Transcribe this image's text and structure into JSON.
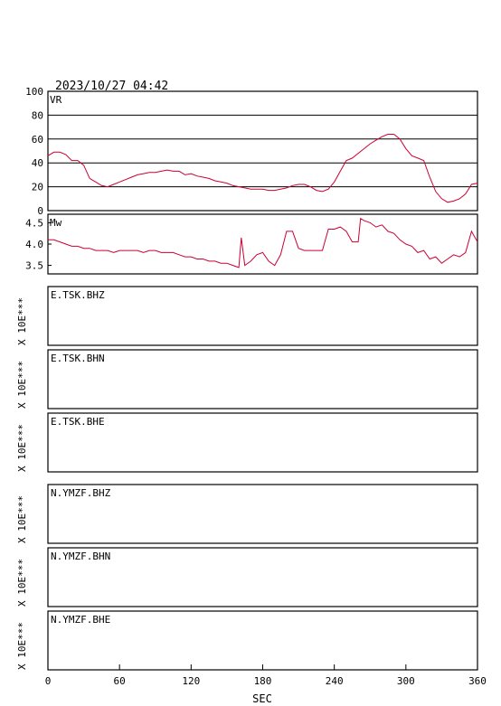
{
  "header": {
    "timestamp": "2023/10/27 04:42"
  },
  "colors": {
    "trace": "#cc0033",
    "frame": "#000000",
    "background": "#ffffff"
  },
  "chart_data": [
    {
      "type": "line",
      "panel_label": "VR",
      "xlim": [
        0,
        360
      ],
      "ylim": [
        0,
        100
      ],
      "yticks": [
        "0",
        "20",
        "40",
        "60",
        "80",
        "100"
      ],
      "grid": true,
      "series": [
        {
          "x": [
            0,
            5,
            10,
            15,
            20,
            25,
            30,
            35,
            40,
            45,
            50,
            55,
            60,
            65,
            70,
            75,
            80,
            85,
            90,
            95,
            100,
            105,
            110,
            115,
            120,
            125,
            130,
            135,
            140,
            145,
            150,
            155,
            160,
            165,
            170,
            175,
            180,
            185,
            190,
            195,
            200,
            205,
            210,
            215,
            220,
            225,
            230,
            235,
            240,
            245,
            250,
            255,
            260,
            265,
            270,
            275,
            280,
            285,
            290,
            295,
            300,
            305,
            310,
            315,
            320,
            325,
            330,
            335,
            340,
            345,
            350,
            355,
            360
          ],
          "values": [
            46,
            49,
            49,
            47,
            42,
            42,
            38,
            27,
            24,
            21,
            20,
            22,
            24,
            26,
            28,
            30,
            31,
            32,
            32,
            33,
            34,
            33,
            33,
            30,
            31,
            29,
            28,
            27,
            25,
            24,
            23,
            21,
            20,
            19,
            18,
            18,
            18,
            17,
            17,
            18,
            19,
            21,
            22,
            22,
            20,
            17,
            16,
            18,
            24,
            33,
            42,
            44,
            48,
            52,
            56,
            59,
            62,
            64,
            64,
            60,
            52,
            46,
            44,
            42,
            28,
            16,
            10,
            7,
            8,
            10,
            14,
            22,
            23
          ]
        }
      ]
    },
    {
      "type": "line",
      "panel_label": "Mw",
      "xlim": [
        0,
        360
      ],
      "ylim": [
        3.3,
        4.7
      ],
      "yticks": [
        "3.5",
        "4.0",
        "4.5"
      ],
      "series": [
        {
          "x": [
            0,
            5,
            10,
            15,
            20,
            25,
            30,
            35,
            40,
            45,
            50,
            55,
            60,
            65,
            70,
            75,
            80,
            85,
            90,
            95,
            100,
            105,
            110,
            115,
            120,
            125,
            130,
            135,
            140,
            145,
            150,
            155,
            160,
            162,
            165,
            170,
            175,
            180,
            185,
            190,
            195,
            200,
            205,
            210,
            215,
            220,
            225,
            230,
            235,
            240,
            245,
            250,
            255,
            260,
            262,
            265,
            270,
            275,
            280,
            285,
            290,
            295,
            300,
            305,
            310,
            315,
            320,
            325,
            330,
            335,
            340,
            345,
            350,
            355,
            360
          ],
          "values": [
            4.1,
            4.1,
            4.05,
            4.0,
            3.95,
            3.95,
            3.9,
            3.9,
            3.85,
            3.85,
            3.85,
            3.8,
            3.85,
            3.85,
            3.85,
            3.85,
            3.8,
            3.85,
            3.85,
            3.8,
            3.8,
            3.8,
            3.75,
            3.7,
            3.7,
            3.65,
            3.65,
            3.6,
            3.6,
            3.55,
            3.55,
            3.5,
            3.45,
            4.15,
            3.5,
            3.6,
            3.75,
            3.8,
            3.6,
            3.5,
            3.75,
            4.3,
            4.3,
            3.9,
            3.85,
            3.85,
            3.85,
            3.85,
            4.35,
            4.35,
            4.4,
            4.3,
            4.05,
            4.05,
            4.6,
            4.55,
            4.5,
            4.4,
            4.45,
            4.3,
            4.25,
            4.1,
            4.0,
            3.95,
            3.8,
            3.85,
            3.65,
            3.7,
            3.55,
            3.65,
            3.75,
            3.7,
            3.8,
            4.3,
            4.05
          ]
        }
      ]
    }
  ],
  "station_panels": [
    {
      "label": "E.TSK.BHZ",
      "scale": "X 10E***"
    },
    {
      "label": "E.TSK.BHN",
      "scale": "X 10E***"
    },
    {
      "label": "E.TSK.BHE",
      "scale": "X 10E***"
    },
    {
      "label": "N.YMZF.BHZ",
      "scale": "X 10E***"
    },
    {
      "label": "N.YMZF.BHN",
      "scale": "X 10E***"
    },
    {
      "label": "N.YMZF.BHE",
      "scale": "X 10E***"
    }
  ],
  "x_axis": {
    "label": "SEC",
    "ticks": [
      "0",
      "60",
      "120",
      "180",
      "240",
      "300",
      "360"
    ],
    "tick_values": [
      0,
      60,
      120,
      180,
      240,
      300,
      360
    ]
  }
}
